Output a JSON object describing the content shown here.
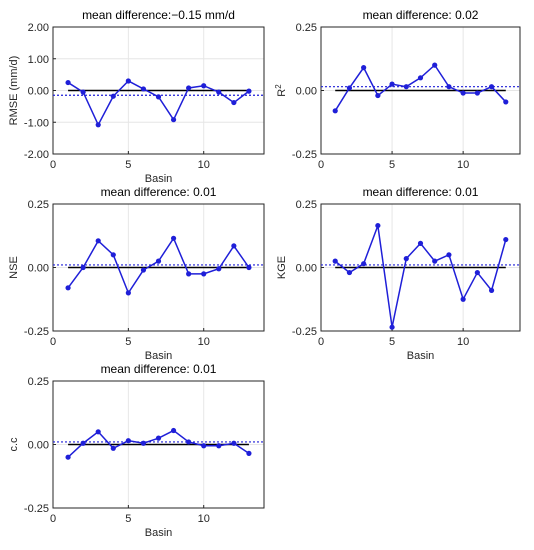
{
  "chart_data": [
    {
      "type": "line",
      "title": "mean difference:−0.15 mm/d",
      "xlabel": "Basin",
      "ylabel": "RMSE (mm/d)",
      "x": [
        1,
        2,
        3,
        4,
        5,
        6,
        7,
        8,
        9,
        10,
        11,
        12,
        13
      ],
      "values": [
        0.25,
        -0.05,
        -1.08,
        -0.18,
        0.3,
        0.05,
        -0.2,
        -0.92,
        0.08,
        0.15,
        -0.05,
        -0.38,
        -0.02
      ],
      "mean": -0.15,
      "xlim": [
        0,
        14
      ],
      "ylim": [
        -2,
        2
      ],
      "xticks": [
        "0",
        "5",
        "10"
      ],
      "yticks": [
        "2.00",
        "1.00",
        "0.00",
        "-1.00",
        "-2.00"
      ],
      "grid": true
    },
    {
      "type": "line",
      "title": "mean difference: 0.02",
      "xlabel": "",
      "ylabel": "R",
      "ylabel_sup": "2",
      "x": [
        1,
        2,
        3,
        4,
        5,
        6,
        7,
        8,
        9,
        10,
        11,
        12,
        13
      ],
      "values": [
        -0.08,
        0.01,
        0.09,
        -0.02,
        0.025,
        0.015,
        0.05,
        0.1,
        0.015,
        -0.01,
        -0.01,
        0.015,
        -0.045
      ],
      "mean": 0.015,
      "xlim": [
        0,
        14
      ],
      "ylim": [
        -0.25,
        0.25
      ],
      "xticks": [
        "0",
        "5",
        "10"
      ],
      "yticks": [
        "0.25",
        "0.00",
        "-0.25"
      ],
      "grid": true
    },
    {
      "type": "line",
      "title": "mean difference: 0.01",
      "xlabel": "Basin",
      "ylabel": "NSE",
      "x": [
        1,
        2,
        3,
        4,
        5,
        6,
        7,
        8,
        9,
        10,
        11,
        12,
        13
      ],
      "values": [
        -0.08,
        0.0,
        0.105,
        0.05,
        -0.1,
        -0.01,
        0.025,
        0.115,
        -0.025,
        -0.025,
        -0.005,
        0.085,
        0.0
      ],
      "mean": 0.01,
      "xlim": [
        0,
        14
      ],
      "ylim": [
        -0.25,
        0.25
      ],
      "xticks": [
        "0",
        "5",
        "10"
      ],
      "yticks": [
        "0.25",
        "0.00",
        "-0.25"
      ],
      "grid": true
    },
    {
      "type": "line",
      "title": "mean difference: 0.01",
      "xlabel": "Basin",
      "ylabel": "KGE",
      "x": [
        1,
        2,
        3,
        4,
        5,
        6,
        7,
        8,
        9,
        10,
        11,
        12,
        13
      ],
      "values": [
        0.025,
        -0.02,
        0.015,
        0.165,
        -0.235,
        0.035,
        0.095,
        0.025,
        0.05,
        -0.125,
        -0.02,
        -0.09,
        0.11
      ],
      "mean": 0.01,
      "xlim": [
        0,
        14
      ],
      "ylim": [
        -0.25,
        0.25
      ],
      "xticks": [
        "0",
        "5",
        "10"
      ],
      "yticks": [
        "0.25",
        "0.00",
        "-0.25"
      ],
      "grid": true
    },
    {
      "type": "line",
      "title": "mean difference: 0.01",
      "xlabel": "Basin",
      "ylabel": "c.c",
      "x": [
        1,
        2,
        3,
        4,
        5,
        6,
        7,
        8,
        9,
        10,
        11,
        12,
        13
      ],
      "values": [
        -0.05,
        0.005,
        0.05,
        -0.015,
        0.015,
        0.005,
        0.025,
        0.055,
        0.01,
        -0.005,
        -0.005,
        0.005,
        -0.035
      ],
      "mean": 0.01,
      "xlim": [
        0,
        14
      ],
      "ylim": [
        -0.25,
        0.25
      ],
      "xticks": [
        "0",
        "5",
        "10"
      ],
      "yticks": [
        "0.25",
        "0.00",
        "-0.25"
      ],
      "grid": true
    }
  ]
}
